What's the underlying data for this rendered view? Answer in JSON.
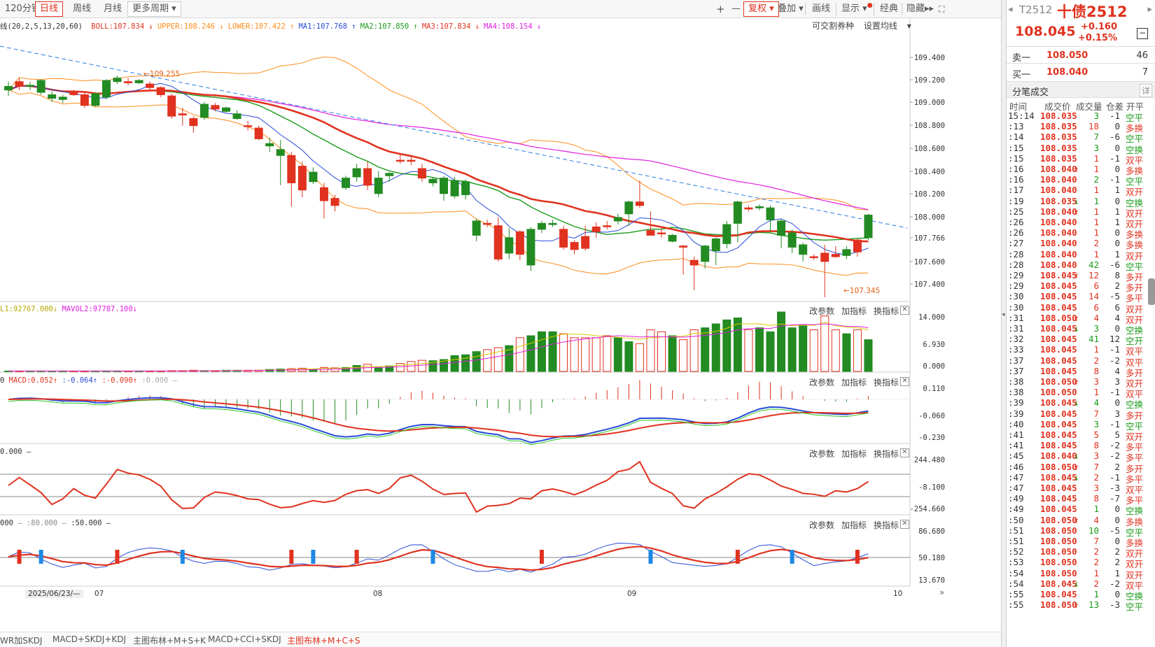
{
  "toolbar": {
    "periods": [
      "120分钟",
      "日线",
      "周线",
      "月线",
      "更多周期"
    ],
    "active_period": "日线",
    "right_buttons": [
      "复权",
      "叠加",
      "画线",
      "显示",
      "经典",
      "隐藏"
    ],
    "plus": "+",
    "minus": "—"
  },
  "main_indicator": {
    "name": "线(20,2,5,13,20,60)",
    "items": [
      {
        "label": "BOLL:107.834",
        "color": "#e0321f",
        "arrow": "↓"
      },
      {
        "label": "UPPER:108.246",
        "color": "#ff8c1a",
        "arrow": "↓"
      },
      {
        "label": "LOWER:107.422",
        "color": "#ff8c1a",
        "arrow": "↑"
      },
      {
        "label": "MA1:107.768",
        "color": "#2a4bd7",
        "arrow": "↑"
      },
      {
        "label": "MA2:107.850",
        "color": "#1a9a1a",
        "arrow": "↑"
      },
      {
        "label": "MA3:107.834",
        "color": "#e0321f",
        "arrow": "↓"
      },
      {
        "label": "MA4:108.154",
        "color": "#e020e0",
        "arrow": "↓"
      }
    ],
    "tradable": "可交割券种",
    "set_ma": "设置均线"
  },
  "price_axis": [
    "109.400",
    "109.200",
    "109.000",
    "108.800",
    "108.600",
    "108.400",
    "108.200",
    "108.000",
    "107.766",
    "107.600",
    "107.400"
  ],
  "annotations": {
    "high": "109.255",
    "low": "107.345"
  },
  "vol_panel": {
    "label": "L1:92767.000",
    "label2": "MAVOL2:97787.100",
    "axis": [
      "14.000",
      "6.930",
      "0.000"
    ]
  },
  "macd_panel": {
    "label": "0",
    "macd": "MACD:0.052",
    "dif": ":-0.064",
    "dea": ":-0.090",
    "extra": ":0.000",
    "axis": [
      "0.110",
      "-0.060",
      "-0.230"
    ]
  },
  "cci_panel": {
    "label": "0.000",
    "axis": [
      "244.480",
      "-8.100",
      "-254.660"
    ]
  },
  "kdj_panel": {
    "label": "000",
    "v1": ":80.000",
    "v2": ":50.000",
    "axis": [
      "86.680",
      "50.180",
      "13.670"
    ]
  },
  "panel_actions": [
    "改参数",
    "加指标",
    "换指标"
  ],
  "x_axis": {
    "start": "2025/06/23/—",
    "labels": [
      "07",
      "08",
      "09",
      "10"
    ]
  },
  "templates": [
    "WR加SKDJ",
    "MACD+SKDJ+KDJ",
    "主图布林+M+S+K",
    "MACD+CCI+SKDJ",
    "主图布林+M+C+S"
  ],
  "active_template": "主图布林+M+C+S",
  "quote": {
    "code": "T2512",
    "name": "十债2512",
    "price": "108.045",
    "change": "+0.160",
    "pct": "+0.15%",
    "sell_label": "卖一",
    "sell_price": "108.050",
    "sell_vol": "46",
    "buy_label": "买一",
    "buy_price": "108.040",
    "buy_vol": "7",
    "ticks_title": "分笔成交",
    "detail": "详",
    "headers": [
      "时间",
      "成交价",
      "成交量",
      "仓差",
      "开平"
    ]
  },
  "trades": [
    [
      "15:14",
      "108.035",
      "",
      "3",
      "-1",
      "空平"
    ],
    [
      ":13",
      "108.035",
      "",
      "18",
      "0",
      "多换"
    ],
    [
      ":14",
      "108.035",
      "",
      "7",
      "-6",
      "空平"
    ],
    [
      ":15",
      "108.035",
      "",
      "3",
      "0",
      "空换"
    ],
    [
      ":15",
      "108.035",
      "",
      "1",
      "-1",
      "双平"
    ],
    [
      ":16",
      "108.040",
      "↑",
      "1",
      "0",
      "多换"
    ],
    [
      ":16",
      "108.040",
      "",
      "2",
      "-1",
      "空平"
    ],
    [
      ":17",
      "108.040",
      "",
      "1",
      "1",
      "双开"
    ],
    [
      ":19",
      "108.035",
      "↓",
      "1",
      "0",
      "空换"
    ],
    [
      ":25",
      "108.040",
      "↑",
      "1",
      "1",
      "双开"
    ],
    [
      ":26",
      "108.040",
      "",
      "1",
      "1",
      "双开"
    ],
    [
      ":26",
      "108.040",
      "",
      "1",
      "0",
      "多换"
    ],
    [
      ":27",
      "108.040",
      "",
      "2",
      "0",
      "多换"
    ],
    [
      ":28",
      "108.040",
      "",
      "1",
      "1",
      "双开"
    ],
    [
      ":28",
      "108.040",
      "",
      "42",
      "-6",
      "空平"
    ],
    [
      ":29",
      "108.045",
      "↑",
      "12",
      "8",
      "多开"
    ],
    [
      ":29",
      "108.045",
      "",
      "6",
      "2",
      "多开"
    ],
    [
      ":30",
      "108.045",
      "",
      "14",
      "-5",
      "多平"
    ],
    [
      ":30",
      "108.045",
      "",
      "6",
      "6",
      "双开"
    ],
    [
      ":31",
      "108.050",
      "↑",
      "4",
      "4",
      "双开"
    ],
    [
      ":31",
      "108.045",
      "↓",
      "3",
      "0",
      "空换"
    ],
    [
      ":32",
      "108.045",
      "",
      "41",
      "12",
      "空开"
    ],
    [
      ":33",
      "108.045",
      "",
      "1",
      "-1",
      "双平"
    ],
    [
      ":37",
      "108.045",
      "",
      "2",
      "-2",
      "双平"
    ],
    [
      ":37",
      "108.045",
      "",
      "8",
      "4",
      "多开"
    ],
    [
      ":38",
      "108.050",
      "↑",
      "3",
      "3",
      "双开"
    ],
    [
      ":38",
      "108.050",
      "",
      "1",
      "-1",
      "双平"
    ],
    [
      ":39",
      "108.045",
      "↓",
      "4",
      "0",
      "空换"
    ],
    [
      ":39",
      "108.045",
      "",
      "7",
      "3",
      "多开"
    ],
    [
      ":40",
      "108.045",
      "",
      "3",
      "-1",
      "空平"
    ],
    [
      ":41",
      "108.045",
      "",
      "5",
      "5",
      "双开"
    ],
    [
      ":41",
      "108.045",
      "",
      "8",
      "-2",
      "多平"
    ],
    [
      ":45",
      "108.040",
      "↓",
      "3",
      "-2",
      "多平"
    ],
    [
      ":46",
      "108.050",
      "↑",
      "7",
      "2",
      "多开"
    ],
    [
      ":47",
      "108.045",
      "↓",
      "2",
      "-1",
      "多平"
    ],
    [
      ":47",
      "108.045",
      "",
      "3",
      "-3",
      "双平"
    ],
    [
      ":49",
      "108.045",
      "",
      "8",
      "-7",
      "多平"
    ],
    [
      ":49",
      "108.045",
      "",
      "1",
      "0",
      "空换"
    ],
    [
      ":50",
      "108.050",
      "↑",
      "4",
      "0",
      "多换"
    ],
    [
      ":51",
      "108.050",
      "",
      "10",
      "-5",
      "空平"
    ],
    [
      ":51",
      "108.050",
      "",
      "7",
      "0",
      "多换"
    ],
    [
      ":52",
      "108.050",
      "",
      "2",
      "2",
      "双开"
    ],
    [
      ":53",
      "108.050",
      "",
      "2",
      "2",
      "双开"
    ],
    [
      ":54",
      "108.050",
      "",
      "1",
      "1",
      "双开"
    ],
    [
      ":54",
      "108.045",
      "↓",
      "2",
      "-2",
      "双平"
    ],
    [
      ":55",
      "108.045",
      "",
      "1",
      "0",
      "空换"
    ],
    [
      ":55",
      "108.050",
      "↑",
      "13",
      "-3",
      "空平"
    ]
  ],
  "chart_data": {
    "type": "candlestick",
    "y_range": [
      107.33,
      109.55
    ],
    "candles": [
      [
        109.13,
        109.1,
        109.17,
        109.05
      ],
      [
        109.13,
        109.17,
        109.2,
        109.1
      ],
      [
        109.14,
        109.13,
        109.17,
        109.1
      ],
      [
        109.18,
        109.08,
        109.19,
        109.06
      ],
      [
        109.06,
        109.03,
        109.09,
        109.0
      ],
      [
        109.04,
        109.02,
        109.06,
        108.99
      ],
      [
        109.06,
        109.08,
        109.1,
        109.05
      ],
      [
        108.97,
        109.06,
        109.09,
        108.95
      ],
      [
        109.07,
        108.97,
        109.08,
        108.96
      ],
      [
        109.18,
        109.04,
        109.19,
        109.02
      ],
      [
        109.2,
        109.17,
        109.22,
        109.15
      ],
      [
        109.16,
        109.17,
        109.2,
        109.14
      ],
      [
        109.18,
        109.16,
        109.19,
        109.15
      ],
      [
        109.12,
        109.15,
        109.17,
        109.1
      ],
      [
        109.06,
        109.12,
        109.13,
        109.04
      ],
      [
        108.88,
        109.05,
        109.07,
        108.86
      ],
      [
        108.89,
        108.9,
        108.95,
        108.8
      ],
      [
        108.8,
        108.86,
        108.88,
        108.74
      ],
      [
        108.98,
        108.87,
        109.0,
        108.85
      ],
      [
        108.94,
        108.97,
        108.99,
        108.92
      ],
      [
        108.95,
        108.92,
        108.96,
        108.91
      ],
      [
        108.9,
        108.86,
        108.93,
        108.85
      ],
      [
        108.8,
        108.8,
        108.84,
        108.76
      ],
      [
        108.69,
        108.78,
        108.8,
        108.68
      ],
      [
        108.65,
        108.63,
        108.7,
        108.58
      ],
      [
        108.6,
        108.55,
        108.68,
        108.3
      ],
      [
        108.32,
        108.55,
        108.58,
        108.12
      ],
      [
        108.26,
        108.46,
        108.5,
        108.2
      ],
      [
        108.41,
        108.33,
        108.45,
        108.31
      ],
      [
        108.17,
        108.28,
        108.32,
        108.02
      ],
      [
        108.13,
        108.19,
        108.22,
        108.08
      ],
      [
        108.36,
        108.28,
        108.38,
        108.26
      ],
      [
        108.44,
        108.37,
        108.48,
        108.33
      ],
      [
        108.3,
        108.44,
        108.5,
        108.26
      ],
      [
        108.36,
        108.23,
        108.42,
        108.2
      ],
      [
        108.4,
        108.38,
        108.41,
        108.33
      ],
      [
        108.51,
        108.51,
        108.56,
        108.48
      ],
      [
        108.51,
        108.51,
        108.55,
        108.47
      ],
      [
        108.36,
        108.44,
        108.48,
        108.33
      ],
      [
        108.35,
        108.32,
        108.37,
        108.29
      ],
      [
        108.36,
        108.23,
        108.38,
        108.17
      ],
      [
        108.34,
        108.21,
        108.37,
        108.19
      ],
      [
        108.33,
        108.22,
        108.35,
        108.18
      ],
      [
        108.0,
        107.88,
        108.02,
        107.83
      ],
      [
        107.98,
        107.98,
        108.01,
        107.95
      ],
      [
        107.68,
        107.96,
        108.03,
        107.66
      ],
      [
        107.86,
        107.73,
        107.94,
        107.68
      ],
      [
        107.72,
        107.91,
        107.92,
        107.67
      ],
      [
        107.93,
        107.63,
        107.95,
        107.58
      ],
      [
        107.98,
        107.93,
        108.0,
        107.9
      ],
      [
        107.98,
        107.97,
        108.01,
        107.95
      ],
      [
        107.78,
        107.93,
        107.96,
        107.76
      ],
      [
        107.76,
        107.82,
        107.84,
        107.72
      ],
      [
        107.77,
        107.87,
        107.96,
        107.75
      ],
      [
        107.91,
        107.95,
        107.99,
        107.86
      ],
      [
        107.96,
        107.96,
        108.0,
        107.93
      ],
      [
        108.03,
        108.0,
        108.06,
        107.97
      ],
      [
        108.16,
        108.06,
        108.17,
        107.96
      ],
      [
        108.13,
        108.16,
        108.34,
        108.11
      ],
      [
        107.88,
        107.92,
        108.08,
        107.88
      ],
      [
        107.9,
        107.9,
        107.94,
        107.86
      ],
      [
        107.88,
        107.83,
        107.89,
        107.82
      ],
      [
        107.78,
        107.79,
        107.8,
        107.55
      ],
      [
        107.63,
        107.67,
        107.7,
        107.42
      ],
      [
        107.79,
        107.66,
        107.8,
        107.6
      ],
      [
        107.85,
        107.75,
        107.86,
        107.63
      ],
      [
        107.97,
        107.81,
        108.0,
        107.77
      ],
      [
        108.16,
        107.98,
        108.17,
        107.82
      ],
      [
        108.1,
        108.11,
        108.13,
        108.08
      ],
      [
        108.12,
        108.11,
        108.14,
        108.09
      ],
      [
        108.11,
        108.01,
        108.13,
        107.91
      ],
      [
        108.0,
        107.88,
        108.02,
        107.77
      ],
      [
        107.9,
        107.78,
        107.93,
        107.73
      ],
      [
        107.8,
        107.72,
        107.82,
        107.66
      ],
      [
        107.7,
        107.7,
        107.72,
        107.67
      ],
      [
        107.66,
        107.73,
        107.8,
        107.36
      ],
      [
        107.7,
        107.72,
        107.79,
        107.69
      ],
      [
        107.76,
        107.71,
        107.79,
        107.68
      ],
      [
        107.74,
        107.84,
        107.85,
        107.7
      ],
      [
        108.05,
        107.86,
        108.06,
        107.84
      ]
    ],
    "volumes": [
      0.1,
      0.1,
      0.1,
      0.1,
      0.1,
      0.1,
      0.1,
      0.1,
      0.1,
      0.1,
      0.1,
      0.1,
      0.1,
      0.1,
      0.1,
      0.2,
      0.2,
      0.3,
      0.2,
      0.2,
      0.3,
      0.3,
      0.3,
      0.3,
      0.5,
      0.6,
      0.7,
      0.8,
      0.6,
      1.0,
      0.9,
      1.0,
      1.5,
      1.8,
      1.0,
      1.4,
      2.0,
      2.5,
      2.8,
      2.7,
      3.0,
      4.0,
      4.2,
      5.0,
      5.5,
      6.0,
      6.5,
      8.5,
      9.0,
      10.0,
      10.0,
      9.5,
      8.5,
      8.5,
      8.5,
      9.0,
      8.5,
      7.5,
      7.0,
      10.5,
      10.0,
      9.0,
      8.0,
      10.5,
      11.0,
      12.0,
      13.0,
      13.5,
      10.5,
      11.0,
      10.0,
      15.0,
      11.0,
      11.5,
      10.5,
      14.0,
      10.5,
      9.5,
      10.5,
      8.0
    ]
  },
  "colors": {
    "up": "#e0321f",
    "down": "#228b22",
    "boll_mid": "#e0321f",
    "boll_band": "#ff8c1a",
    "ma1": "#2a4bd7",
    "ma2": "#1a9a1a",
    "ma4": "#e020e0",
    "trend": "#2a7be4"
  }
}
